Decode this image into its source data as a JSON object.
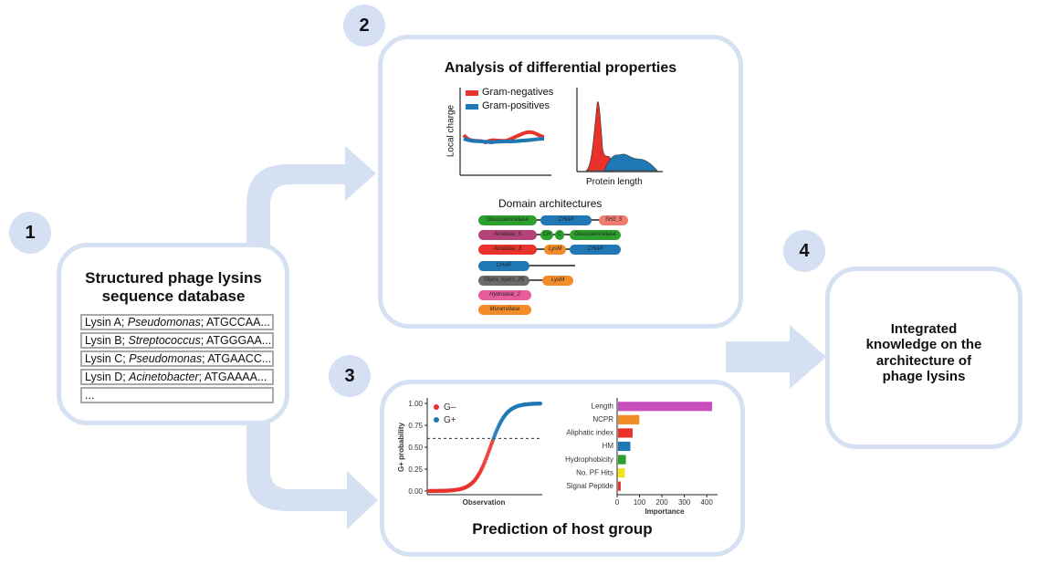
{
  "badges": {
    "b1": "1",
    "b2": "2",
    "b3": "3",
    "b4": "4"
  },
  "database": {
    "title_line1": "Structured phage lysins",
    "title_line2": "sequence database",
    "rows": [
      {
        "name": "Lysin A; ",
        "genus": "Pseudomonas",
        "seq": "; ATGCCAA..."
      },
      {
        "name": "Lysin B; ",
        "genus": "Streptococcus",
        "seq": "; ATGGGAA..."
      },
      {
        "name": "Lysin C; ",
        "genus": "Pseudomonas",
        "seq": "; ATGAACC..."
      },
      {
        "name": "Lysin D; ",
        "genus": "Acinetobacter",
        "seq": "; ATGAAAA..."
      }
    ],
    "ellipsis": "..."
  },
  "analysis": {
    "title": "Analysis of differential properties",
    "legend_neg": "Gram-negatives",
    "legend_pos": "Gram-positives",
    "ylabel_charge": "Local charge",
    "xlabel_length": "Protein length",
    "domain_title": "Domain architectures",
    "domains": {
      "glucos1": "Glucosaminidase",
      "chap1": "CHAP",
      "sh3": "SH3_5",
      "amidase5": "Amidase_5",
      "ch": "CH",
      "c2": "C",
      "glucos2": "Glucosaminidase",
      "amidase3": "Amidase_3",
      "lysm1": "LysM",
      "chap2": "CHAP",
      "chap3": "CHAP",
      "glyco": "Glyco_hydro_25",
      "lysm2": "LysM",
      "hydrolase": "Hydrolase_2",
      "muramidase": "Muramidase"
    }
  },
  "prediction": {
    "title": "Prediction of host group",
    "legend_neg": "G–",
    "legend_pos": "G+",
    "ylabel": "G+ probability",
    "xlabel": "Observation",
    "ytick_labels": [
      "1.00",
      "0.75",
      "0.50",
      "0.25",
      "0.00"
    ],
    "importance_xlabel": "Importance",
    "importance_ticks": [
      "0",
      "100",
      "200",
      "300",
      "400"
    ]
  },
  "integrated": {
    "line1": "Integrated",
    "line2": "knowledge on the",
    "line3": "architecture of",
    "line4": "phage lysins"
  },
  "colors": {
    "panel_border": "#d5e0f2",
    "arrow": "#d5e0f2",
    "gram_neg": "#e8322a",
    "gram_pos": "#1f78b4"
  },
  "chart_data": [
    {
      "type": "bar",
      "title": "",
      "xlabel": "Importance",
      "ylabel": "",
      "orientation": "horizontal",
      "categories": [
        "Length",
        "NCPR",
        "Aliphatic index",
        "HM",
        "Hydrophobicity",
        "No. PF Hits",
        "Signal Peptide"
      ],
      "values": [
        420,
        95,
        65,
        55,
        35,
        30,
        12
      ],
      "colors": [
        "#c94fbf",
        "#f28c28",
        "#e8322a",
        "#1f78b4",
        "#2ca02c",
        "#f2e318",
        "#e8322a"
      ],
      "xlim": [
        0,
        440
      ],
      "xticks": [
        0,
        100,
        200,
        300,
        400
      ]
    },
    {
      "type": "scatter",
      "title": "",
      "xlabel": "Observation",
      "ylabel": "G+ probability",
      "ylim": [
        0,
        1
      ],
      "yticks": [
        0,
        0.25,
        0.5,
        0.75,
        1.0
      ],
      "threshold": 0.6,
      "series": [
        {
          "name": "G–",
          "color": "#e8322a"
        },
        {
          "name": "G+",
          "color": "#1f78b4"
        }
      ]
    }
  ]
}
